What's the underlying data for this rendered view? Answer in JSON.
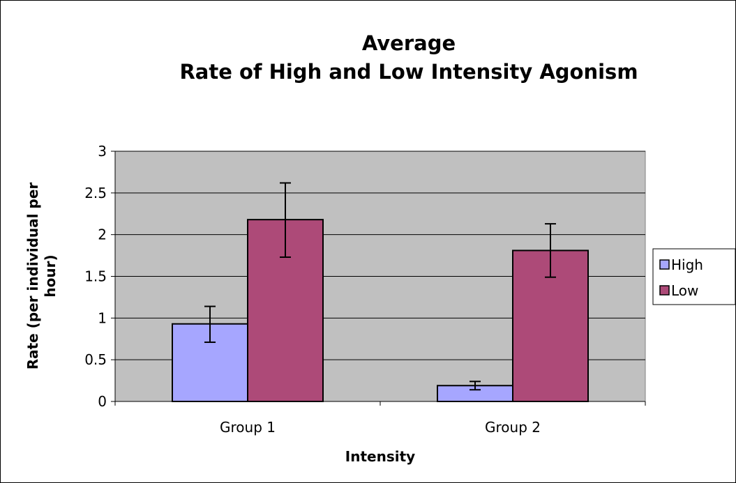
{
  "chart_data": {
    "type": "bar",
    "title_lines": [
      "Average",
      "Rate of High and Low Intensity Agonism"
    ],
    "xlabel": "Intensity",
    "ylabel_lines": [
      "Rate (per individual per",
      "hour)"
    ],
    "categories": [
      "Group 1",
      "Group 2"
    ],
    "series": [
      {
        "name": "High",
        "values": [
          0.93,
          0.19
        ],
        "error_low": [
          0.71,
          0.14
        ],
        "error_high": [
          1.14,
          0.24
        ],
        "color": "#a6a6ff"
      },
      {
        "name": "Low",
        "values": [
          2.18,
          1.81
        ],
        "error_low": [
          1.73,
          1.49
        ],
        "error_high": [
          2.62,
          2.13
        ],
        "color": "#ad4a78"
      }
    ],
    "ylim": [
      0,
      3
    ],
    "yticks": [
      "0",
      "0.5",
      "1",
      "1.5",
      "2",
      "2.5",
      "3"
    ],
    "ytick_values": [
      0,
      0.5,
      1,
      1.5,
      2,
      2.5,
      3
    ],
    "grid": true,
    "plot_background": "#c0c0c0",
    "legend_position": "right"
  }
}
